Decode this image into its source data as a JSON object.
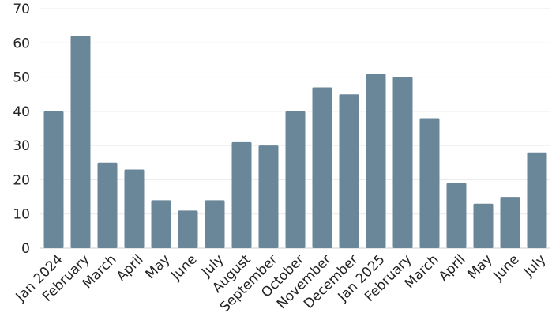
{
  "chart_data": {
    "type": "bar",
    "title": "",
    "xlabel": "",
    "ylabel": "",
    "categories": [
      "Jan 2024",
      "February",
      "March",
      "April",
      "May",
      "June",
      "July",
      "August",
      "September",
      "October",
      "November",
      "December",
      "Jan 2025",
      "February",
      "March",
      "April",
      "May",
      "June",
      "July"
    ],
    "values": [
      40,
      62,
      25,
      23,
      14,
      11,
      14,
      31,
      30,
      40,
      47,
      45,
      51,
      50,
      38,
      19,
      13,
      15,
      28
    ],
    "ylim": [
      0,
      70
    ],
    "yticks": [
      0,
      10,
      20,
      30,
      40,
      50,
      60,
      70
    ],
    "grid": true,
    "legend": "none",
    "bar_color": "#6a8799"
  }
}
